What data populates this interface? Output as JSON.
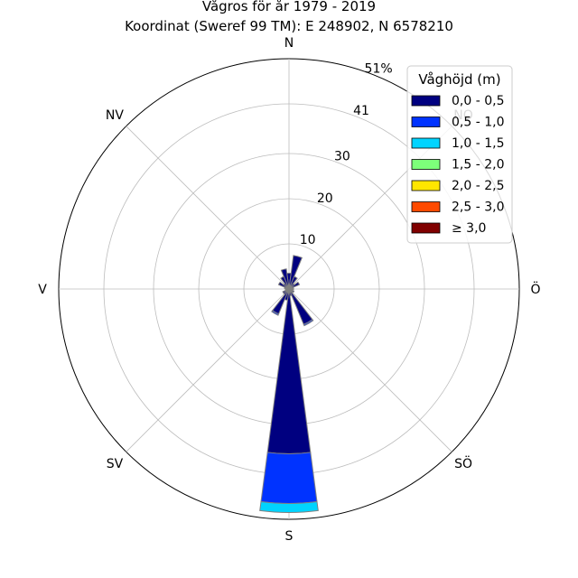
{
  "chart_data": {
    "type": "wind-rose",
    "title": "Vågros för år 1979 - 2019",
    "subtitle": "Koordinat (Sweref 99 TM): E 248902, N 6578210",
    "directions": [
      {
        "key": "n",
        "label": "N",
        "angle": 0
      },
      {
        "key": "no",
        "label": "NO",
        "angle": 45
      },
      {
        "key": "o",
        "label": "Ö",
        "angle": 90
      },
      {
        "key": "so",
        "label": "SÖ",
        "angle": 135
      },
      {
        "key": "s",
        "label": "S",
        "angle": 180
      },
      {
        "key": "sv",
        "label": "SV",
        "angle": 225
      },
      {
        "key": "v",
        "label": "V",
        "angle": 270
      },
      {
        "key": "nv",
        "label": "NV",
        "angle": 315
      }
    ],
    "radial_ticks": [
      {
        "value": 10,
        "label": "10"
      },
      {
        "value": 20,
        "label": "20"
      },
      {
        "value": 30,
        "label": "30"
      },
      {
        "value": 41,
        "label": "41"
      },
      {
        "value": 51,
        "label": "51%"
      }
    ],
    "r_max": 51,
    "sector_width_deg": 15,
    "legend": {
      "title": "Våghöjd (m)",
      "position": "top-right",
      "items": [
        {
          "label": "0,0 - 0,5",
          "color": "#000080"
        },
        {
          "label": "0,5 - 1,0",
          "color": "#0033ff"
        },
        {
          "label": "1,0 - 1,5",
          "color": "#00d4ff"
        },
        {
          "label": "1,5 - 2,0",
          "color": "#7dff7a"
        },
        {
          "label": "2,0 - 2,5",
          "color": "#ffe600"
        },
        {
          "label": "2,5 - 3,0",
          "color": "#ff4a00"
        },
        {
          "label": "≥ 3,0",
          "color": "#800000"
        }
      ]
    },
    "sectors": [
      {
        "dir": 0,
        "values": [
          3.5,
          0,
          0,
          0,
          0,
          0,
          0
        ]
      },
      {
        "dir": 15,
        "values": [
          7.5,
          0,
          0,
          0,
          0,
          0,
          0
        ]
      },
      {
        "dir": 30,
        "values": [
          3.0,
          0,
          0,
          0,
          0,
          0,
          0
        ]
      },
      {
        "dir": 45,
        "values": [
          1.5,
          0,
          0,
          0,
          0,
          0,
          0
        ]
      },
      {
        "dir": 60,
        "values": [
          2.5,
          0,
          0,
          0,
          0,
          0,
          0
        ]
      },
      {
        "dir": 75,
        "values": [
          1.0,
          0,
          0,
          0,
          0,
          0,
          0
        ]
      },
      {
        "dir": 90,
        "values": [
          1.0,
          0,
          0,
          0,
          0,
          0,
          0
        ]
      },
      {
        "dir": 105,
        "values": [
          0.8,
          0,
          0,
          0,
          0,
          0,
          0
        ]
      },
      {
        "dir": 120,
        "values": [
          1.2,
          0,
          0,
          0,
          0,
          0,
          0
        ]
      },
      {
        "dir": 135,
        "values": [
          1.0,
          0,
          0,
          0,
          0,
          0,
          0
        ]
      },
      {
        "dir": 150,
        "values": [
          8.5,
          0.3,
          0,
          0,
          0,
          0,
          0
        ]
      },
      {
        "dir": 165,
        "values": [
          1.5,
          0,
          0,
          0,
          0,
          0,
          0
        ]
      },
      {
        "dir": 180,
        "values": [
          36.5,
          11.0,
          2.0,
          0,
          0,
          0,
          0
        ]
      },
      {
        "dir": 195,
        "values": [
          2.5,
          0,
          0,
          0,
          0,
          0,
          0
        ]
      },
      {
        "dir": 210,
        "values": [
          6.0,
          0.3,
          0,
          0,
          0,
          0,
          0
        ]
      },
      {
        "dir": 225,
        "values": [
          1.5,
          0,
          0,
          0,
          0,
          0,
          0
        ]
      },
      {
        "dir": 240,
        "values": [
          1.5,
          0,
          0,
          0,
          0,
          0,
          0
        ]
      },
      {
        "dir": 255,
        "values": [
          0.8,
          0,
          0,
          0,
          0,
          0,
          0
        ]
      },
      {
        "dir": 270,
        "values": [
          0.8,
          0,
          0,
          0,
          0,
          0,
          0
        ]
      },
      {
        "dir": 285,
        "values": [
          1.0,
          0,
          0,
          0,
          0,
          0,
          0
        ]
      },
      {
        "dir": 300,
        "values": [
          2.5,
          0,
          0,
          0,
          0,
          0,
          0
        ]
      },
      {
        "dir": 315,
        "values": [
          1.5,
          0,
          0,
          0,
          0,
          0,
          0
        ]
      },
      {
        "dir": 330,
        "values": [
          3.0,
          0,
          0,
          0,
          0,
          0,
          0
        ]
      },
      {
        "dir": 345,
        "values": [
          4.5,
          0,
          0,
          0,
          0,
          0,
          0
        ]
      }
    ],
    "grid": true
  }
}
